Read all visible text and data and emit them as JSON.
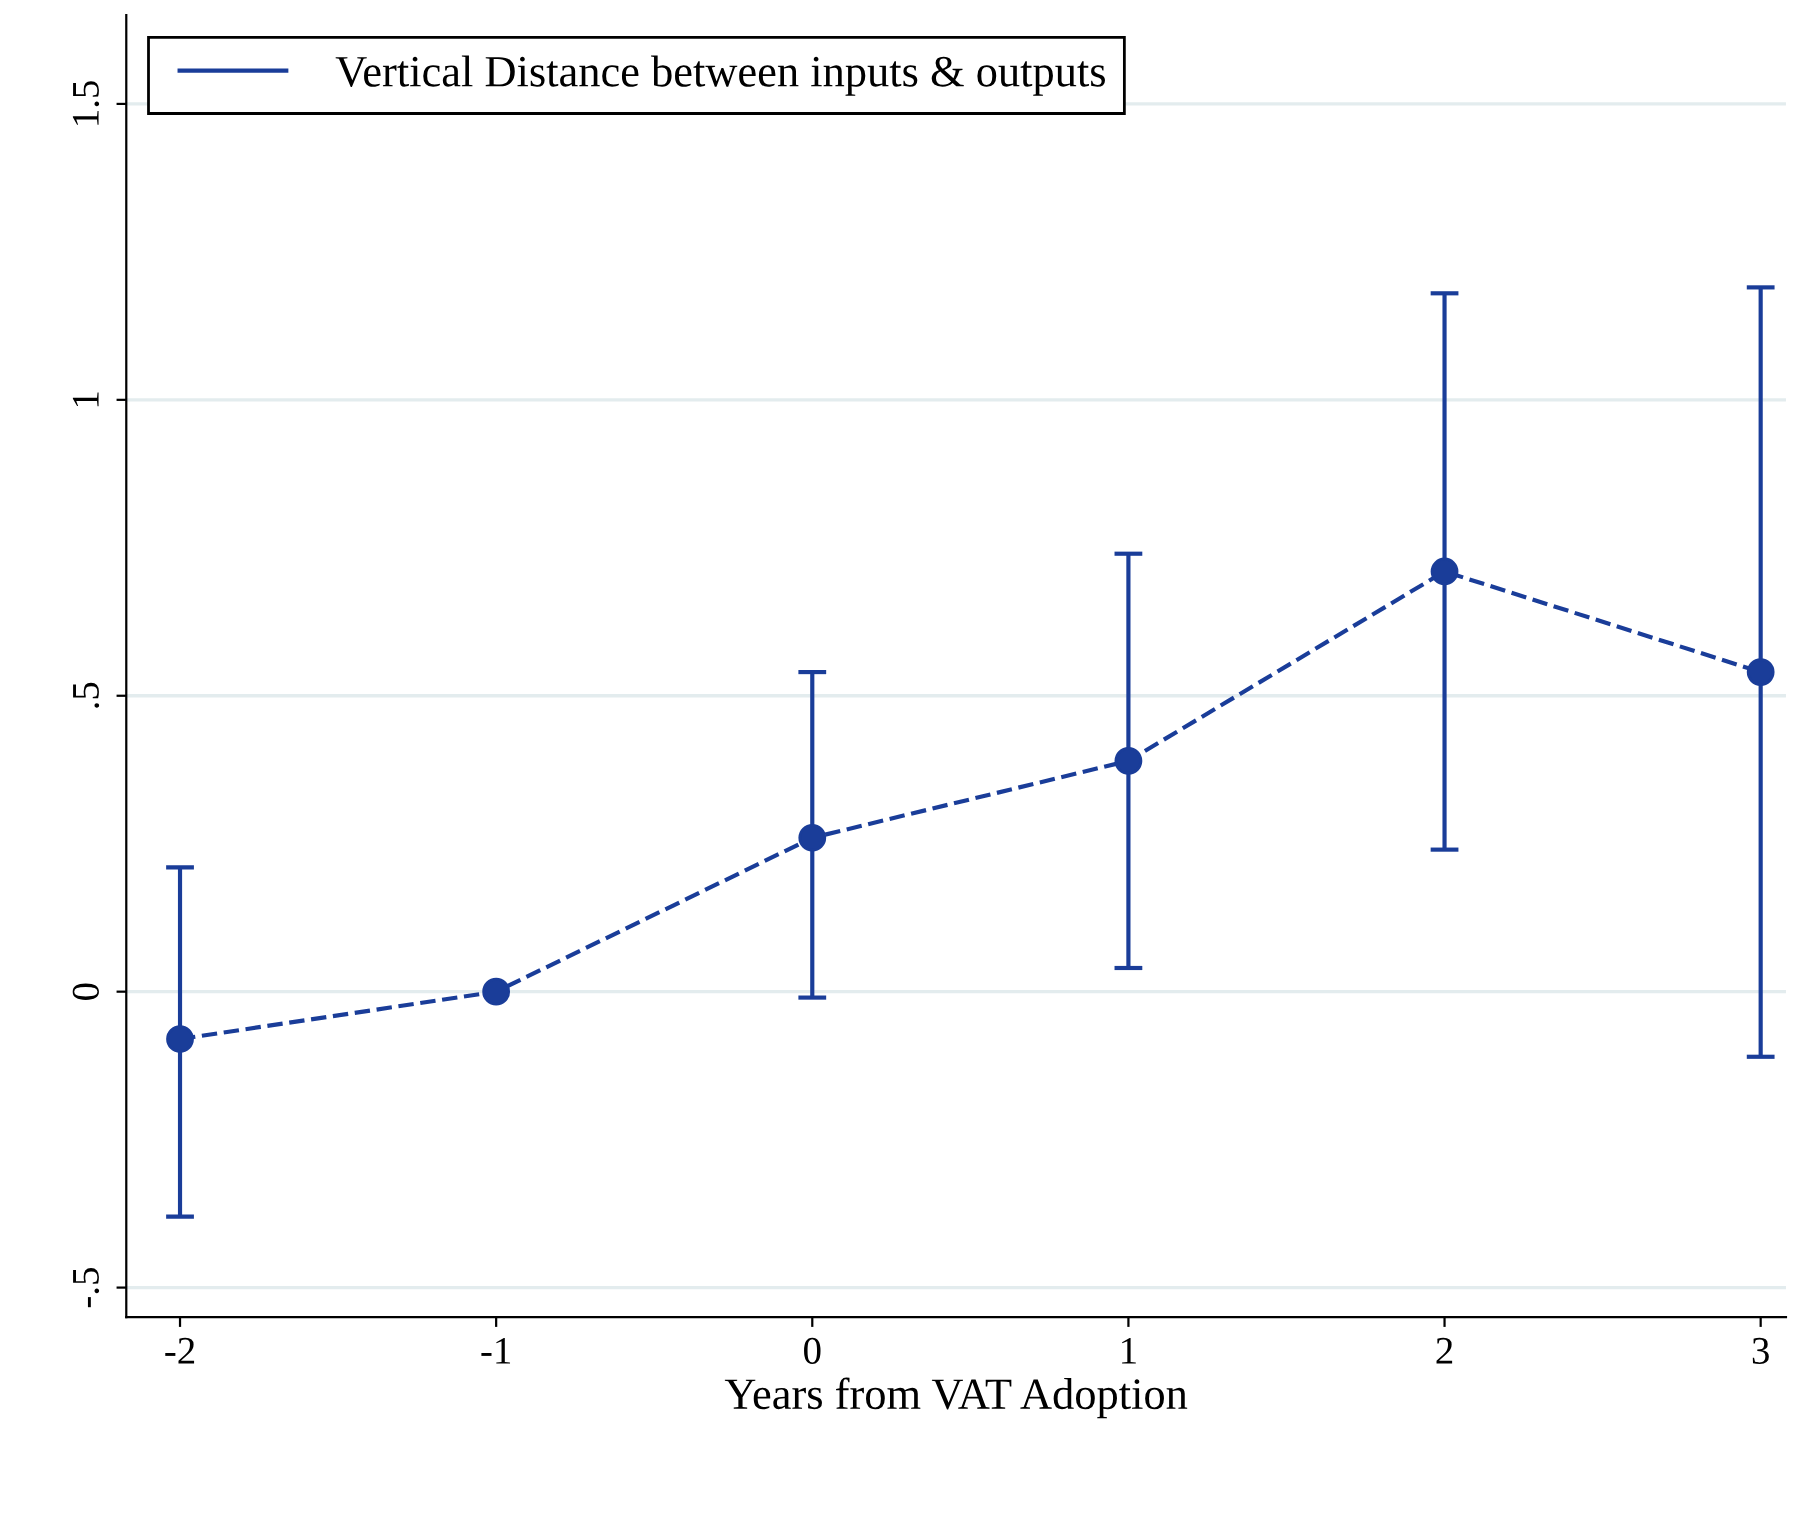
{
  "chart_data": {
    "type": "line",
    "xlabel": "Years from VAT Adoption",
    "x": [
      -2,
      -1,
      0,
      1,
      2,
      3
    ],
    "series": [
      {
        "name": "Vertical Distance between inputs & outputs",
        "color": "#1a3d99",
        "values": [
          -0.08,
          0.0,
          0.26,
          0.39,
          0.71,
          0.54
        ],
        "errors": [
          [
            -0.38,
            0.21
          ],
          null,
          [
            -0.01,
            0.54
          ],
          [
            0.04,
            0.74
          ],
          [
            0.24,
            1.18
          ],
          [
            -0.11,
            1.19
          ]
        ]
      }
    ],
    "xlim": [
      -2.17,
      3.08
    ],
    "xticks": [
      -2,
      -1,
      0,
      1,
      2,
      3
    ],
    "ylim": [
      -0.55,
      1.65
    ],
    "yticks": [
      {
        "value": -0.5,
        "label": "-.5"
      },
      0,
      {
        "value": 0.5,
        "label": ".5"
      },
      1,
      1.5
    ],
    "grid": "y",
    "legend": "top left",
    "marker": "circle",
    "line_style": "dashed"
  }
}
